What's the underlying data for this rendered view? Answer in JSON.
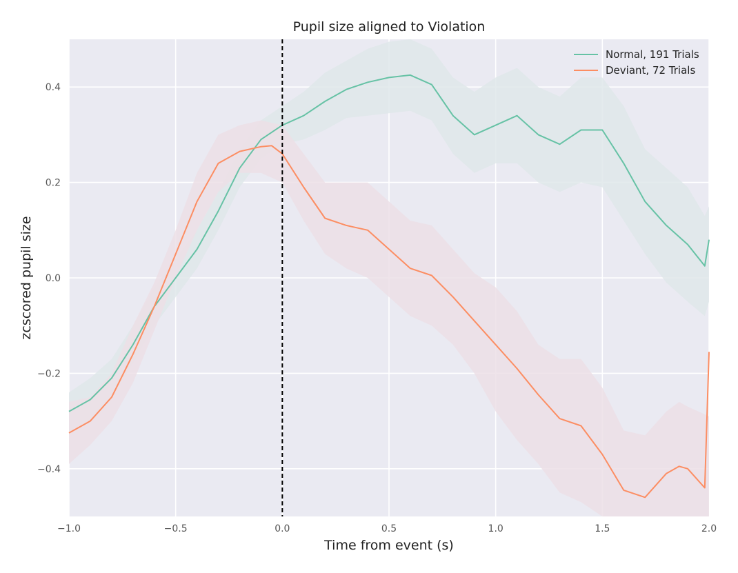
{
  "chart_data": {
    "type": "line",
    "title": "Pupil size aligned to Violation",
    "xlabel": "Time from event (s)",
    "ylabel": "zcscored pupil size",
    "xlim": [
      -1.0,
      2.0
    ],
    "ylim": [
      -0.5,
      0.5
    ],
    "x_ticks": [
      -1.0,
      -0.5,
      0.0,
      0.5,
      1.0,
      1.5,
      2.0
    ],
    "x_tick_labels": [
      "−1.0",
      "−0.5",
      "0.0",
      "0.5",
      "1.0",
      "1.5",
      "2.0"
    ],
    "y_ticks": [
      -0.4,
      -0.2,
      0.0,
      0.2,
      0.4
    ],
    "y_tick_labels": [
      "−0.4",
      "−0.2",
      "0.0",
      "0.2",
      "0.4"
    ],
    "grid": true,
    "legend_position": "top-right",
    "event_line_x": 0.0,
    "background": "#eaeaf2",
    "series": [
      {
        "name": "Normal, 191 Trials",
        "color": "#66c2a5",
        "band_color": "#dfe8ea",
        "points": [
          [
            -1.0,
            -0.28
          ],
          [
            -0.9,
            -0.255
          ],
          [
            -0.8,
            -0.21
          ],
          [
            -0.7,
            -0.14
          ],
          [
            -0.6,
            -0.06
          ],
          [
            -0.5,
            0.0
          ],
          [
            -0.4,
            0.06
          ],
          [
            -0.3,
            0.14
          ],
          [
            -0.2,
            0.23
          ],
          [
            -0.1,
            0.29
          ],
          [
            0.0,
            0.32
          ],
          [
            0.1,
            0.34
          ],
          [
            0.2,
            0.37
          ],
          [
            0.3,
            0.395
          ],
          [
            0.4,
            0.41
          ],
          [
            0.5,
            0.42
          ],
          [
            0.6,
            0.425
          ],
          [
            0.7,
            0.405
          ],
          [
            0.8,
            0.34
          ],
          [
            0.9,
            0.3
          ],
          [
            1.0,
            0.32
          ],
          [
            1.1,
            0.34
          ],
          [
            1.2,
            0.3
          ],
          [
            1.3,
            0.28
          ],
          [
            1.4,
            0.31
          ],
          [
            1.5,
            0.31
          ],
          [
            1.6,
            0.24
          ],
          [
            1.7,
            0.16
          ],
          [
            1.8,
            0.11
          ],
          [
            1.9,
            0.07
          ],
          [
            1.98,
            0.025
          ],
          [
            2.0,
            0.08
          ]
        ],
        "ci_lower": [
          [
            -1.0,
            -0.32
          ],
          [
            -0.9,
            -0.3
          ],
          [
            -0.8,
            -0.25
          ],
          [
            -0.7,
            -0.18
          ],
          [
            -0.6,
            -0.1
          ],
          [
            -0.5,
            -0.04
          ],
          [
            -0.4,
            0.02
          ],
          [
            -0.3,
            0.1
          ],
          [
            -0.2,
            0.19
          ],
          [
            -0.1,
            0.25
          ],
          [
            0.0,
            0.28
          ],
          [
            0.1,
            0.29
          ],
          [
            0.2,
            0.31
          ],
          [
            0.3,
            0.335
          ],
          [
            0.4,
            0.34
          ],
          [
            0.5,
            0.345
          ],
          [
            0.6,
            0.35
          ],
          [
            0.7,
            0.33
          ],
          [
            0.8,
            0.26
          ],
          [
            0.9,
            0.22
          ],
          [
            1.0,
            0.24
          ],
          [
            1.1,
            0.24
          ],
          [
            1.2,
            0.2
          ],
          [
            1.3,
            0.18
          ],
          [
            1.4,
            0.2
          ],
          [
            1.5,
            0.19
          ],
          [
            1.6,
            0.12
          ],
          [
            1.7,
            0.05
          ],
          [
            1.8,
            -0.01
          ],
          [
            1.9,
            -0.05
          ],
          [
            1.98,
            -0.08
          ],
          [
            2.0,
            -0.05
          ]
        ],
        "ci_upper": [
          [
            -1.0,
            -0.24
          ],
          [
            -0.9,
            -0.21
          ],
          [
            -0.8,
            -0.17
          ],
          [
            -0.7,
            -0.1
          ],
          [
            -0.6,
            -0.02
          ],
          [
            -0.5,
            0.04
          ],
          [
            -0.4,
            0.1
          ],
          [
            -0.3,
            0.18
          ],
          [
            -0.2,
            0.27
          ],
          [
            -0.1,
            0.33
          ],
          [
            0.0,
            0.36
          ],
          [
            0.1,
            0.39
          ],
          [
            0.2,
            0.43
          ],
          [
            0.3,
            0.455
          ],
          [
            0.4,
            0.48
          ],
          [
            0.5,
            0.495
          ],
          [
            0.6,
            0.5
          ],
          [
            0.7,
            0.48
          ],
          [
            0.8,
            0.42
          ],
          [
            0.9,
            0.39
          ],
          [
            1.0,
            0.42
          ],
          [
            1.1,
            0.44
          ],
          [
            1.2,
            0.4
          ],
          [
            1.3,
            0.38
          ],
          [
            1.4,
            0.42
          ],
          [
            1.5,
            0.42
          ],
          [
            1.6,
            0.36
          ],
          [
            1.7,
            0.27
          ],
          [
            1.8,
            0.23
          ],
          [
            1.9,
            0.19
          ],
          [
            1.98,
            0.13
          ],
          [
            2.0,
            0.15
          ]
        ]
      },
      {
        "name": "Deviant, 72 Trials",
        "color": "#fc8d62",
        "band_color": "#ecdfe6",
        "points": [
          [
            -1.0,
            -0.325
          ],
          [
            -0.9,
            -0.3
          ],
          [
            -0.8,
            -0.25
          ],
          [
            -0.7,
            -0.16
          ],
          [
            -0.6,
            -0.06
          ],
          [
            -0.5,
            0.05
          ],
          [
            -0.4,
            0.16
          ],
          [
            -0.3,
            0.24
          ],
          [
            -0.2,
            0.265
          ],
          [
            -0.1,
            0.275
          ],
          [
            -0.05,
            0.277
          ],
          [
            0.0,
            0.26
          ],
          [
            0.1,
            0.19
          ],
          [
            0.2,
            0.125
          ],
          [
            0.3,
            0.11
          ],
          [
            0.4,
            0.1
          ],
          [
            0.5,
            0.06
          ],
          [
            0.6,
            0.02
          ],
          [
            0.7,
            0.005
          ],
          [
            0.8,
            -0.04
          ],
          [
            0.9,
            -0.09
          ],
          [
            1.0,
            -0.14
          ],
          [
            1.1,
            -0.19
          ],
          [
            1.2,
            -0.245
          ],
          [
            1.3,
            -0.295
          ],
          [
            1.4,
            -0.31
          ],
          [
            1.5,
            -0.37
          ],
          [
            1.6,
            -0.445
          ],
          [
            1.7,
            -0.46
          ],
          [
            1.8,
            -0.41
          ],
          [
            1.86,
            -0.395
          ],
          [
            1.9,
            -0.4
          ],
          [
            1.98,
            -0.44
          ],
          [
            2.0,
            -0.155
          ]
        ],
        "ci_lower": [
          [
            -1.0,
            -0.39
          ],
          [
            -0.9,
            -0.35
          ],
          [
            -0.8,
            -0.3
          ],
          [
            -0.7,
            -0.22
          ],
          [
            -0.6,
            -0.11
          ],
          [
            -0.5,
            0.0
          ],
          [
            -0.4,
            0.1
          ],
          [
            -0.3,
            0.18
          ],
          [
            -0.2,
            0.22
          ],
          [
            -0.1,
            0.22
          ],
          [
            0.0,
            0.2
          ],
          [
            0.1,
            0.12
          ],
          [
            0.2,
            0.05
          ],
          [
            0.3,
            0.02
          ],
          [
            0.4,
            0.0
          ],
          [
            0.5,
            -0.04
          ],
          [
            0.6,
            -0.08
          ],
          [
            0.7,
            -0.1
          ],
          [
            0.8,
            -0.14
          ],
          [
            0.9,
            -0.2
          ],
          [
            1.0,
            -0.28
          ],
          [
            1.1,
            -0.34
          ],
          [
            1.2,
            -0.39
          ],
          [
            1.3,
            -0.45
          ],
          [
            1.4,
            -0.47
          ],
          [
            1.5,
            -0.52
          ],
          [
            1.6,
            -0.57
          ],
          [
            1.7,
            -0.59
          ],
          [
            1.8,
            -0.55
          ],
          [
            1.9,
            -0.54
          ],
          [
            2.0,
            -0.56
          ]
        ],
        "ci_upper": [
          [
            -1.0,
            -0.26
          ],
          [
            -0.9,
            -0.25
          ],
          [
            -0.8,
            -0.2
          ],
          [
            -0.7,
            -0.1
          ],
          [
            -0.6,
            -0.01
          ],
          [
            -0.5,
            0.1
          ],
          [
            -0.4,
            0.22
          ],
          [
            -0.3,
            0.3
          ],
          [
            -0.2,
            0.32
          ],
          [
            -0.1,
            0.33
          ],
          [
            0.0,
            0.32
          ],
          [
            0.1,
            0.26
          ],
          [
            0.2,
            0.2
          ],
          [
            0.3,
            0.2
          ],
          [
            0.4,
            0.2
          ],
          [
            0.5,
            0.16
          ],
          [
            0.6,
            0.12
          ],
          [
            0.7,
            0.11
          ],
          [
            0.8,
            0.06
          ],
          [
            0.9,
            0.01
          ],
          [
            1.0,
            -0.02
          ],
          [
            1.1,
            -0.07
          ],
          [
            1.2,
            -0.14
          ],
          [
            1.3,
            -0.17
          ],
          [
            1.4,
            -0.17
          ],
          [
            1.5,
            -0.23
          ],
          [
            1.6,
            -0.32
          ],
          [
            1.7,
            -0.33
          ],
          [
            1.8,
            -0.28
          ],
          [
            1.86,
            -0.26
          ],
          [
            1.9,
            -0.27
          ],
          [
            2.0,
            -0.29
          ]
        ]
      }
    ]
  }
}
